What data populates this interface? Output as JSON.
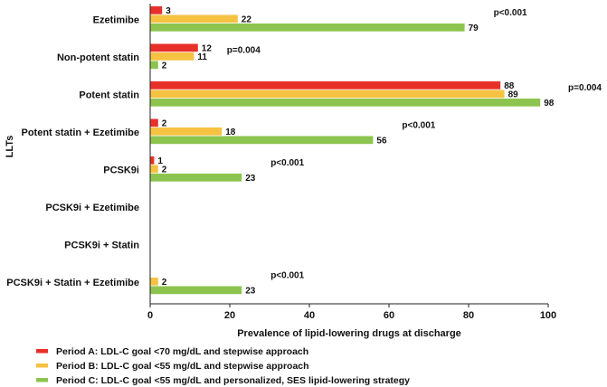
{
  "chart_data": {
    "type": "bar",
    "orientation": "horizontal",
    "categories": [
      "Ezetimibe",
      "Non-potent statin",
      "Potent statin",
      "Potent statin + Ezetimibe",
      "PCSK9i",
      "PCSK9i + Ezetimibe",
      "PCSK9i + Statin",
      "PCSK9i + Statin + Ezetimibe"
    ],
    "series": [
      {
        "name": "Period A: LDL-C goal <70 mg/dL and stepwise approach",
        "color": "#e8302a",
        "values": [
          3,
          12,
          88,
          2,
          1,
          null,
          null,
          null
        ]
      },
      {
        "name": "Period B: LDL-C goal <55 mg/dL and stepwise approach",
        "color": "#f5c242",
        "values": [
          22,
          11,
          89,
          18,
          2,
          null,
          null,
          2
        ]
      },
      {
        "name": "Period C: LDL-C goal <55 mg/dL and personalized, SES lipid-lowering strategy",
        "color": "#8dc44f",
        "values": [
          79,
          2,
          98,
          56,
          23,
          null,
          null,
          23
        ]
      }
    ],
    "p_values": [
      "p<0.001",
      "p=0.004",
      "p=0.004",
      "p<0.001",
      "p<0.001",
      "",
      "",
      "p<0.001"
    ],
    "xlabel": "Prevalence of lipid-lowering drugs at discharge",
    "ylabel": "LLTs",
    "xlim": [
      0,
      100
    ],
    "xticks": [
      0,
      20,
      40,
      60,
      80,
      100
    ],
    "legend_position": "bottom-left"
  }
}
